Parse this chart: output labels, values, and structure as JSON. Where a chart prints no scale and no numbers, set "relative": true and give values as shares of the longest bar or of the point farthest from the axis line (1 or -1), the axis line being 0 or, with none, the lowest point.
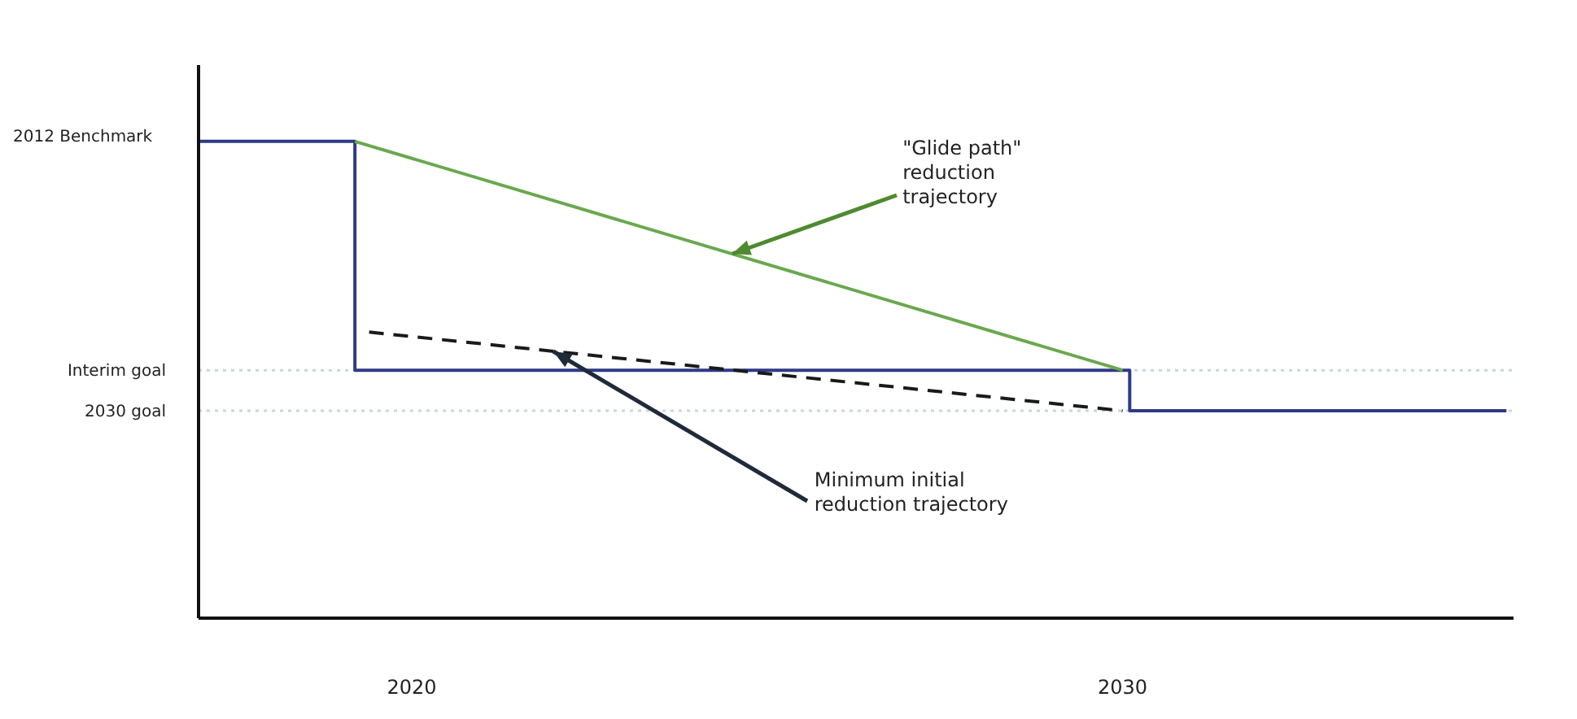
{
  "chart_data": {
    "type": "line",
    "relative": true,
    "xlim": [
      2017,
      2035.5
    ],
    "xticks": [
      2020,
      2030
    ],
    "series": [
      {
        "color": "#2e3a87",
        "x": [
          2017,
          2019.2,
          2019.2,
          2030.1,
          2030.1,
          2035.4
        ],
        "values": [
          1,
          1,
          0.52,
          0.52,
          0.435,
          0.435
        ]
      },
      {
        "color": "#6aa84f",
        "x": [
          2019.2,
          2030
        ],
        "values": [
          1,
          0.52
        ]
      },
      {
        "color": "#1a1a1a",
        "line_style": "dashed",
        "x": [
          2019.4,
          2030
        ],
        "values": [
          0.6,
          0.435
        ]
      }
    ],
    "ref_lines": [
      {
        "axis": "y",
        "value": 0.52,
        "label": "Interim goal",
        "color": "#c9d6dd",
        "line_style": "dotted"
      },
      {
        "axis": "y",
        "value": 0.435,
        "label": "2030 goal",
        "color": "#c9d6dd",
        "line_style": "dotted"
      }
    ],
    "annotations": [
      "2012 Benchmark",
      {
        "text": "\"Glide path\" reduction trajectory",
        "x": 2024.5,
        "y": 0.764
      },
      {
        "text": "Minimum initial reduction trajectory",
        "x": 2022,
        "y": 0.56
      }
    ],
    "grid": false,
    "legend": false,
    "marker": "none"
  }
}
